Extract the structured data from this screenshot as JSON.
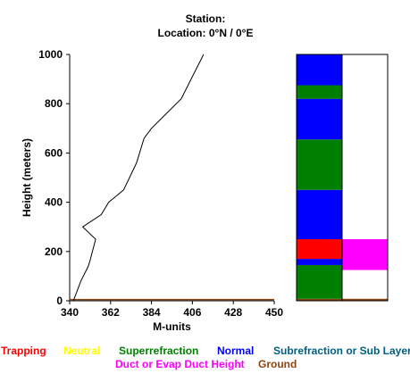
{
  "header": {
    "station_line": "Station:",
    "location_line": "Location:   0°N /   0°E"
  },
  "chart_data": {
    "type": "line",
    "xlabel": "M-units",
    "ylabel": "Height (meters)",
    "xlim": [
      340,
      450
    ],
    "ylim": [
      0,
      1000
    ],
    "x_ticks": [
      "340",
      "362",
      "384",
      "406",
      "428",
      "450"
    ],
    "y_ticks": [
      "0",
      "200",
      "400",
      "600",
      "800",
      "1000"
    ],
    "profile": {
      "x": [
        342,
        346,
        350,
        351,
        354,
        347,
        357,
        361,
        369,
        376,
        380,
        384,
        400,
        404,
        412
      ],
      "y": [
        0,
        80,
        140,
        165,
        250,
        300,
        350,
        400,
        450,
        560,
        660,
        700,
        820,
        880,
        1000
      ],
      "color": "#000000"
    },
    "ground_line": {
      "y": 5,
      "color": "#8b4513"
    },
    "layer_bars": {
      "left": [
        {
          "from": 0,
          "to": 8,
          "category": "Ground",
          "color": "#8b4513"
        },
        {
          "from": 8,
          "to": 145,
          "category": "Superrefraction",
          "color": "#008000"
        },
        {
          "from": 145,
          "to": 170,
          "category": "Normal",
          "color": "#0000ff"
        },
        {
          "from": 170,
          "to": 250,
          "category": "Trapping",
          "color": "#ff0000"
        },
        {
          "from": 250,
          "to": 450,
          "category": "Normal",
          "color": "#0000ff"
        },
        {
          "from": 450,
          "to": 655,
          "category": "Superrefraction",
          "color": "#008000"
        },
        {
          "from": 655,
          "to": 820,
          "category": "Normal",
          "color": "#0000ff"
        },
        {
          "from": 820,
          "to": 875,
          "category": "Superrefraction",
          "color": "#008000"
        },
        {
          "from": 875,
          "to": 1000,
          "category": "Normal",
          "color": "#0000ff"
        }
      ],
      "right": [
        {
          "from": 0,
          "to": 8,
          "category": "Ground",
          "color": "#8b4513"
        },
        {
          "from": 125,
          "to": 250,
          "category": "Duct or Evap Duct Height",
          "color": "#ff00ff"
        }
      ]
    },
    "legend": [
      {
        "label": "Trapping",
        "color": "#ff0000"
      },
      {
        "label": "Neutral",
        "color": "#ffff00"
      },
      {
        "label": "Superrefraction",
        "color": "#008000"
      },
      {
        "label": "Normal",
        "color": "#0000ff"
      },
      {
        "label": "Subrefraction or Sub Layer",
        "color": "#006080"
      },
      {
        "label": "Duct or Evap Duct Height",
        "color": "#ff00ff"
      },
      {
        "label": "Ground",
        "color": "#8b4513"
      }
    ]
  }
}
